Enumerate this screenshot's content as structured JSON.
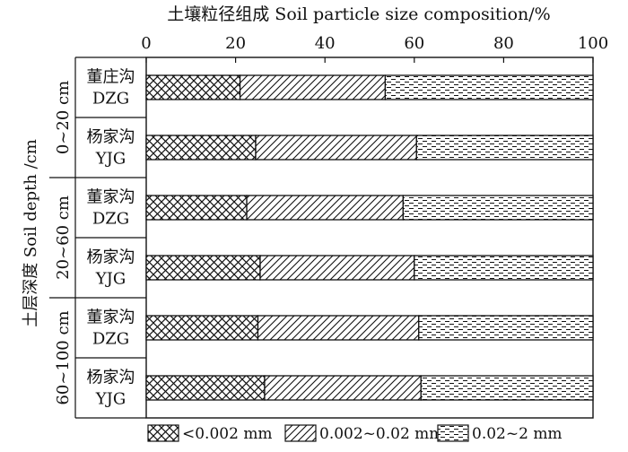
{
  "chart_data": {
    "type": "bar",
    "orientation": "horizontal",
    "stacked": true,
    "title": "",
    "xlabel": "土壤粒径组成 Soil particle size composition/%",
    "ylabel": "土层深度 Soil depth /cm",
    "xlim": [
      0,
      100
    ],
    "x_ticks": [
      "0",
      "20",
      "40",
      "60",
      "80",
      "100"
    ],
    "x_axis_position": "top",
    "grid": false,
    "legend_position": "bottom",
    "groups": [
      {
        "label": "0~20 cm"
      },
      {
        "label": "20~60 cm"
      },
      {
        "label": "60~100 cm"
      }
    ],
    "categories": [
      {
        "cn": "董庄沟",
        "en": "DZG"
      },
      {
        "cn": "杨家沟",
        "en": "YJG"
      },
      {
        "cn": "董家沟",
        "en": "DZG"
      },
      {
        "cn": "杨家沟",
        "en": "YJG"
      },
      {
        "cn": "董家沟",
        "en": "DZG"
      },
      {
        "cn": "杨家沟",
        "en": "YJG"
      }
    ],
    "series": [
      {
        "name": "<0.002 mm",
        "pattern": "crosshatch",
        "values": [
          21.0,
          24.5,
          22.5,
          25.5,
          25.0,
          26.5
        ]
      },
      {
        "name": "0.002~0.02 mm",
        "pattern": "diagonal",
        "values": [
          32.5,
          36.0,
          35.0,
          34.5,
          36.0,
          35.0
        ]
      },
      {
        "name": "0.02~2 mm",
        "pattern": "dashes",
        "values": [
          46.5,
          39.5,
          42.5,
          40.0,
          39.0,
          38.5
        ]
      }
    ],
    "colors": {
      "ink": "#111111",
      "background": "#ffffff"
    }
  }
}
